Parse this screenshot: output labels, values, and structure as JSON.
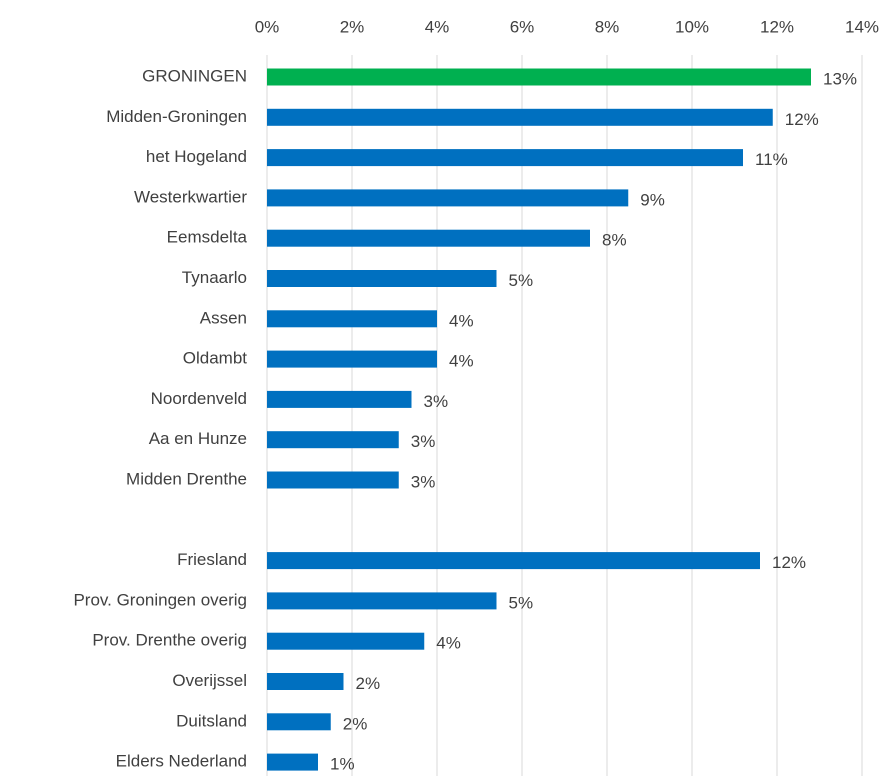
{
  "chart_data": {
    "type": "bar",
    "orientation": "horizontal",
    "categories": [
      "GRONINGEN",
      "Midden-Groningen",
      "het Hogeland",
      "Westerkwartier",
      "Eemsdelta",
      "Tynaarlo",
      "Assen",
      "Oldambt",
      "Noordenveld",
      "Aa en Hunze",
      "Midden Drenthe",
      null,
      "Friesland",
      "Prov. Groningen overig",
      "Prov. Drenthe overig",
      "Overijssel",
      "Duitsland",
      "Elders Nederland"
    ],
    "values": [
      12.8,
      11.9,
      11.2,
      8.5,
      7.6,
      5.4,
      4.0,
      4.0,
      3.4,
      3.1,
      3.1,
      null,
      11.6,
      5.4,
      3.7,
      1.8,
      1.5,
      1.2
    ],
    "value_labels": [
      "13%",
      "12%",
      "11%",
      "9%",
      "8%",
      "5%",
      "4%",
      "4%",
      "3%",
      "3%",
      "3%",
      null,
      "12%",
      "5%",
      "4%",
      "2%",
      "2%",
      "1%"
    ],
    "colors": [
      "#00b050",
      "#0070c0",
      "#0070c0",
      "#0070c0",
      "#0070c0",
      "#0070c0",
      "#0070c0",
      "#0070c0",
      "#0070c0",
      "#0070c0",
      "#0070c0",
      null,
      "#0070c0",
      "#0070c0",
      "#0070c0",
      "#0070c0",
      "#0070c0",
      "#0070c0"
    ],
    "xlim": [
      0,
      14
    ],
    "xticks": [
      {
        "value": 0,
        "label": "0%"
      },
      {
        "value": 2,
        "label": "2%"
      },
      {
        "value": 4,
        "label": "4%"
      },
      {
        "value": 6,
        "label": "6%"
      },
      {
        "value": 8,
        "label": "8%"
      },
      {
        "value": 10,
        "label": "10%"
      },
      {
        "value": 12,
        "label": "12%"
      },
      {
        "value": 14,
        "label": "14%"
      }
    ],
    "grid": true,
    "axis_position": "top"
  }
}
